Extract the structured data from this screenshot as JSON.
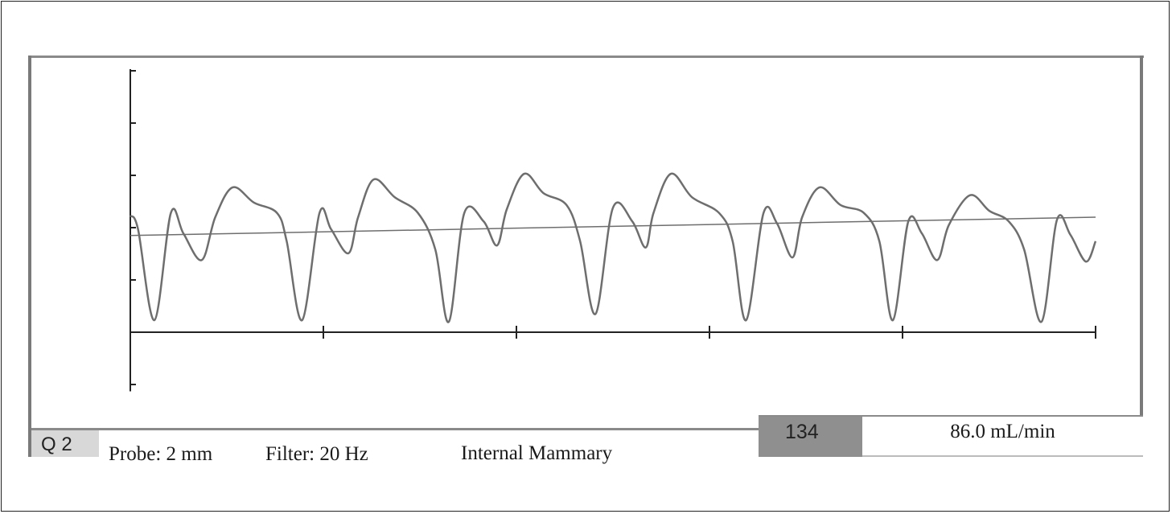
{
  "footer": {
    "channel": "Q 2",
    "probe": "Probe: 2 mm",
    "filter": "Filter: 20 Hz",
    "vessel": "Internal Mammary",
    "rate": "134",
    "flow": "86.0 mL/min"
  },
  "colors": {
    "trace": "#6e6e6e",
    "axis": "#222222",
    "rate_box": "#8f8f8f",
    "channel_box": "#d8d8d8"
  },
  "chart_data": {
    "type": "line",
    "title": "",
    "xlabel": "",
    "ylabel": "",
    "xlim": [
      0,
      5
    ],
    "ylim": [
      -1.1,
      5
    ],
    "x_ticks": [
      0,
      1,
      2,
      3,
      4,
      5
    ],
    "y_ticks": [
      -1,
      0,
      1,
      2,
      3,
      4,
      5
    ],
    "grid": false,
    "series": [
      {
        "role": "flow-waveform",
        "points": [
          [
            0,
            2.23
          ],
          [
            0.04,
            1.97
          ],
          [
            0.125,
            0.23
          ],
          [
            0.21,
            2.28
          ],
          [
            0.275,
            1.89
          ],
          [
            0.37,
            1.38
          ],
          [
            0.44,
            2.2
          ],
          [
            0.53,
            2.77
          ],
          [
            0.64,
            2.48
          ],
          [
            0.76,
            2.28
          ],
          [
            0.81,
            1.74
          ],
          [
            0.89,
            0.23
          ],
          [
            0.98,
            2.28
          ],
          [
            1.04,
            1.97
          ],
          [
            1.13,
            1.51
          ],
          [
            1.18,
            2.2
          ],
          [
            1.26,
            2.92
          ],
          [
            1.37,
            2.58
          ],
          [
            1.49,
            2.28
          ],
          [
            1.58,
            1.58
          ],
          [
            1.65,
            0.2
          ],
          [
            1.73,
            2.28
          ],
          [
            1.83,
            2.12
          ],
          [
            1.9,
            1.66
          ],
          [
            1.95,
            2.35
          ],
          [
            2.04,
            3.03
          ],
          [
            2.14,
            2.66
          ],
          [
            2.26,
            2.43
          ],
          [
            2.33,
            1.74
          ],
          [
            2.41,
            0.35
          ],
          [
            2.5,
            2.38
          ],
          [
            2.6,
            2.12
          ],
          [
            2.67,
            1.62
          ],
          [
            2.71,
            2.28
          ],
          [
            2.8,
            3.03
          ],
          [
            2.91,
            2.58
          ],
          [
            3.05,
            2.28
          ],
          [
            3.12,
            1.74
          ],
          [
            3.19,
            0.23
          ],
          [
            3.28,
            2.28
          ],
          [
            3.35,
            2.08
          ],
          [
            3.43,
            1.43
          ],
          [
            3.48,
            2.2
          ],
          [
            3.57,
            2.77
          ],
          [
            3.68,
            2.43
          ],
          [
            3.8,
            2.28
          ],
          [
            3.88,
            1.74
          ],
          [
            3.95,
            0.23
          ],
          [
            4.03,
            2.12
          ],
          [
            4.1,
            1.89
          ],
          [
            4.18,
            1.38
          ],
          [
            4.24,
            2.05
          ],
          [
            4.35,
            2.62
          ],
          [
            4.45,
            2.32
          ],
          [
            4.55,
            2.12
          ],
          [
            4.63,
            1.58
          ],
          [
            4.72,
            0.2
          ],
          [
            4.8,
            2.15
          ],
          [
            4.87,
            1.86
          ],
          [
            4.95,
            1.35
          ],
          [
            5.0,
            1.74
          ]
        ]
      },
      {
        "role": "mean-flow-line",
        "points": [
          [
            0,
            1.85
          ],
          [
            5,
            2.2
          ]
        ]
      }
    ]
  }
}
